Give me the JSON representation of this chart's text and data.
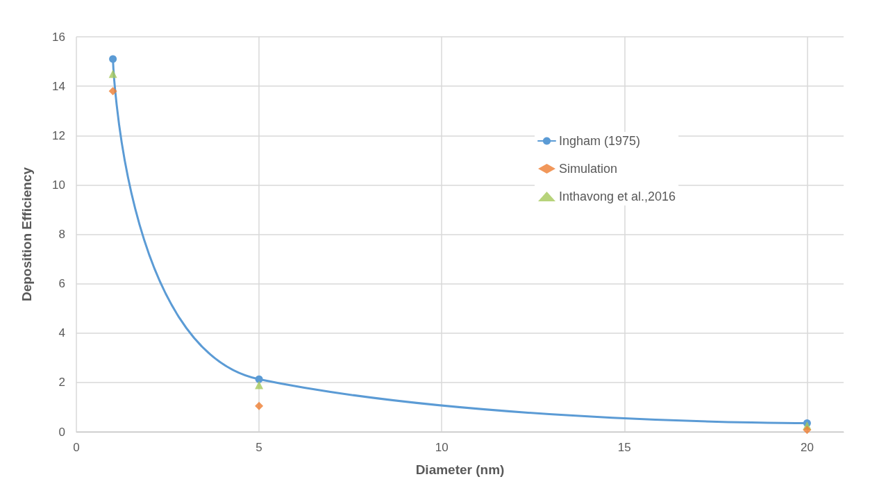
{
  "chart_data": {
    "type": "scatter",
    "xlabel": "Diameter (nm)",
    "ylabel": "Deposition Efficiency",
    "x": [
      1,
      5,
      20
    ],
    "series": [
      {
        "name": "Ingham (1975)",
        "type": "line",
        "color": "#5b9bd5",
        "marker": "circle",
        "line_style": "solid",
        "values": [
          15.1,
          2.13,
          0.35
        ]
      },
      {
        "name": "Simulation",
        "color": "#ed7d31",
        "marker": "diamond",
        "values": [
          13.8,
          1.05,
          0.08
        ]
      },
      {
        "name": "Inthavong et al.,2016",
        "color": "#a5c85a",
        "marker": "triangle",
        "values": [
          14.5,
          1.9,
          0.25
        ]
      }
    ],
    "xlim": [
      0,
      21
    ],
    "xticks": [
      0,
      5,
      10,
      15,
      20
    ],
    "ylim": [
      0,
      16
    ],
    "yticks": [
      0,
      2,
      4,
      6,
      8,
      10,
      12,
      14,
      16
    ],
    "grid": true,
    "legend": "right"
  }
}
